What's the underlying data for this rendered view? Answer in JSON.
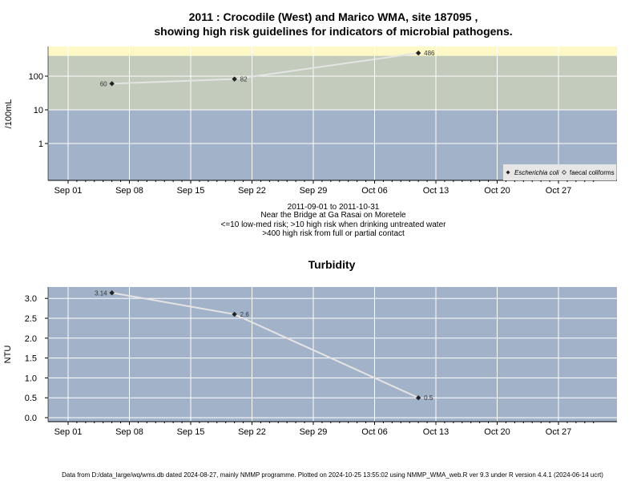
{
  "chart_data": [
    {
      "type": "line",
      "title": "2011 : Crocodile (West) and Marico WMA, site 187095 ,",
      "title2": "showing high risk guidelines for indicators of microbial pathogens.",
      "ylabel": "/100mL",
      "yscale": "log",
      "y_ticks": [
        "1",
        "10",
        "100"
      ],
      "x_ticks": [
        "Sep 01",
        "Sep 08",
        "Sep 15",
        "Sep 22",
        "Sep 29",
        "Oct 06",
        "Oct 13",
        "Oct 20",
        "Oct 27"
      ],
      "subtitle": [
        "2011-09-01 to 2011-10-31",
        "Near the Bridge at Ga Rasai on Moretele",
        "<=10 low-med risk; >10 high risk when drinking untreated water",
        ">400 high risk from full or partial contact"
      ],
      "series": [
        {
          "name": "Escherichia coli",
          "x": [
            "2011-09-06",
            "2011-09-20",
            "2011-10-11"
          ],
          "y": [
            60,
            82,
            486
          ],
          "labels": [
            "60",
            "82",
            "486"
          ]
        }
      ],
      "legend": {
        "position": "bottom-right",
        "items": [
          "Escherichia coli",
          "faecal coliforms"
        ]
      },
      "colors": {
        "low": "#a2b2c8",
        "mid": "#c3cbbd",
        "high": "#fdf8c5",
        "line": "#e4e4e4",
        "grid": "#ffffff",
        "marker": "#222222"
      }
    },
    {
      "type": "line",
      "title": "Turbidity",
      "ylabel": "NTU",
      "y_ticks": [
        "0.0",
        "0.5",
        "1.0",
        "1.5",
        "2.0",
        "2.5",
        "3.0"
      ],
      "x_ticks": [
        "Sep 01",
        "Sep 08",
        "Sep 15",
        "Sep 22",
        "Sep 29",
        "Oct 06",
        "Oct 13",
        "Oct 20",
        "Oct 27"
      ],
      "series": [
        {
          "x": [
            "2011-09-06",
            "2011-09-20",
            "2011-10-11"
          ],
          "y": [
            3.14,
            2.6,
            0.5
          ],
          "labels": [
            "3.14",
            "2.6",
            "0.5"
          ]
        }
      ],
      "colors": {
        "background": "#a2b2c8",
        "line": "#e4e4e4",
        "grid": "#ffffff",
        "marker": "#222222"
      }
    }
  ],
  "footer": "Data from D:/data_large/wq/wms.db dated 2024-08-27, mainly NMMP programme. Plotted on 2024-10-25 13:55:02 using NMMP_WMA_web.R ver 9.3 under R version 4.4.1 (2024-06-14 ucrt)"
}
